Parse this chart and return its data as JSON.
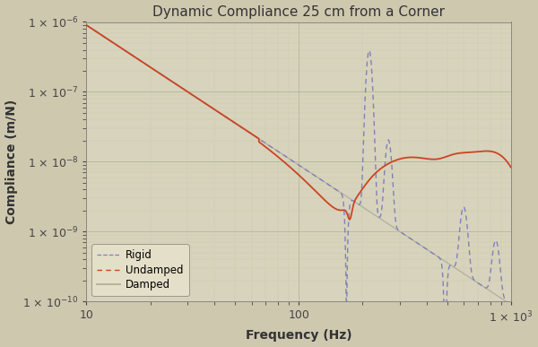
{
  "title": "Dynamic Compliance 25 cm from a Corner",
  "xlabel": "Frequency (Hz)",
  "ylabel": "Compliance (m/N)",
  "xlim": [
    10,
    1000
  ],
  "ylim": [
    1e-10,
    1e-06
  ],
  "background_color": "#cec8af",
  "plot_bg_color": "#d8d3bc",
  "grid_color_major": "#b0b896",
  "grid_color_minor": "#c8ceac",
  "legend_labels": [
    "Undamped",
    "Damped",
    "Rigid"
  ],
  "undamped_color": "#8080bb",
  "damped_color": "#cc4422",
  "rigid_color": "#b0b09a",
  "title_fontsize": 11,
  "axis_label_fontsize": 10,
  "tick_fontsize": 9
}
